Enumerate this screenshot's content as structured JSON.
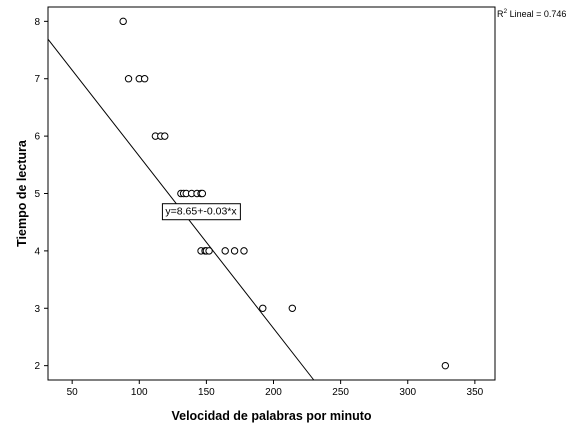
{
  "chart_data": {
    "type": "scatter",
    "xlabel": "Velocidad de palabras por minuto",
    "ylabel": "Tiempo de lectura",
    "xlim": [
      32,
      365
    ],
    "ylim": [
      1.75,
      8.25
    ],
    "xticks": [
      50,
      100,
      150,
      200,
      250,
      300,
      350
    ],
    "yticks": [
      2,
      3,
      4,
      5,
      6,
      7,
      8
    ],
    "grid": false,
    "points": [
      {
        "x": 88,
        "y": 8
      },
      {
        "x": 92,
        "y": 7
      },
      {
        "x": 100,
        "y": 7
      },
      {
        "x": 104,
        "y": 7
      },
      {
        "x": 112,
        "y": 6
      },
      {
        "x": 116,
        "y": 6
      },
      {
        "x": 119,
        "y": 6
      },
      {
        "x": 131,
        "y": 5
      },
      {
        "x": 133,
        "y": 5
      },
      {
        "x": 135,
        "y": 5
      },
      {
        "x": 139,
        "y": 5
      },
      {
        "x": 143,
        "y": 5
      },
      {
        "x": 146,
        "y": 5
      },
      {
        "x": 147,
        "y": 5
      },
      {
        "x": 146,
        "y": 4
      },
      {
        "x": 149,
        "y": 4
      },
      {
        "x": 150,
        "y": 4
      },
      {
        "x": 152,
        "y": 4
      },
      {
        "x": 164,
        "y": 4
      },
      {
        "x": 171,
        "y": 4
      },
      {
        "x": 178,
        "y": 4
      },
      {
        "x": 192,
        "y": 3
      },
      {
        "x": 214,
        "y": 3
      },
      {
        "x": 328,
        "y": 2
      }
    ],
    "fit_line": {
      "intercept": 8.65,
      "slope": -0.03,
      "equation_label": "y=8.65+-0.03*x",
      "equation_anchor": {
        "x": 146,
        "y": 4.7
      }
    },
    "r2_label": {
      "prefix": "R",
      "superscript": "2",
      "text": " Lineal = 0.746"
    }
  }
}
